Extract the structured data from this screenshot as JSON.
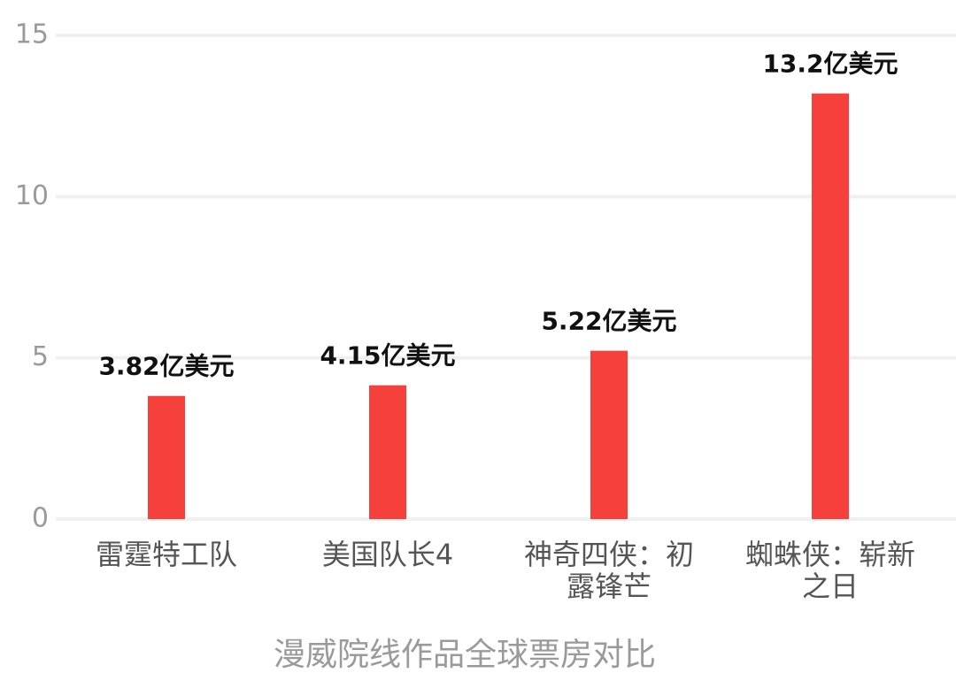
{
  "chart_data": {
    "type": "bar",
    "title": "漫威院线作品全球票房对比",
    "categories": [
      "雷霆特工队",
      "美国队长4",
      "神奇四侠：初露锋芒",
      "蜘蛛侠：崭新之日"
    ],
    "values": [
      3.82,
      4.15,
      5.22,
      13.2
    ],
    "value_labels": [
      "3.82亿美元",
      "4.15亿美元",
      "5.22亿美元",
      "13.2亿美元"
    ],
    "color": "#f5403b",
    "ylim": [
      0,
      15
    ],
    "yticks": [
      0,
      5,
      10,
      15
    ],
    "grid": true
  }
}
